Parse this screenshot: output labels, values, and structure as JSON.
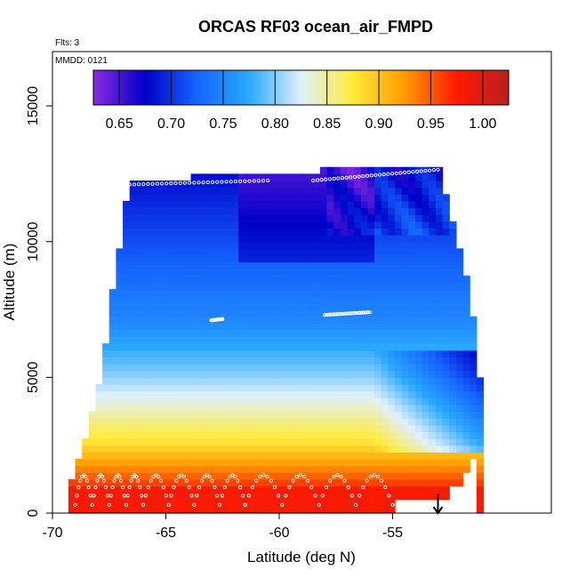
{
  "chart_data": {
    "type": "heatmap",
    "title": "ORCAS RF03 ocean_air_FMPD",
    "notes": {
      "flights": "Flts: 3",
      "date": "MMDD: 0121"
    },
    "xlabel": "Latitude (deg N)",
    "ylabel": "Altitude (m)",
    "xlim": [
      -70,
      -48
    ],
    "ylim": [
      0,
      17000
    ],
    "x_ticks": [
      -70,
      -65,
      -60,
      -55
    ],
    "y_ticks": [
      0,
      5000,
      10000,
      15000
    ],
    "colorbar": {
      "min": 0.625,
      "max": 1.025,
      "ticks": [
        0.65,
        0.7,
        0.75,
        0.8,
        0.85,
        0.9,
        0.95,
        1.0
      ],
      "tick_labels": [
        "0.65",
        "0.70",
        "0.75",
        "0.80",
        "0.85",
        "0.90",
        "0.95",
        "1.00"
      ],
      "colors": [
        "#8a2be2",
        "#0000c8",
        "#1565ff",
        "#2aa8ff",
        "#dff0ff",
        "#ffeb3b",
        "#ff9a00",
        "#ff1a00",
        "#b82020"
      ],
      "placement": "top"
    },
    "grid_bounds": {
      "lat_min": -69.3,
      "lat_max": -51.2,
      "alt_min": 0,
      "alt_max": 12700
    },
    "profile_boundary": [
      [
        -69.3,
        0,
        500
      ],
      [
        -69.0,
        0,
        1500
      ],
      [
        -68.8,
        0,
        2000
      ],
      [
        -68.4,
        0,
        3000
      ],
      [
        -68.0,
        0,
        4500
      ],
      [
        -67.6,
        0,
        6500
      ],
      [
        -67.3,
        0,
        8500
      ],
      [
        -67.0,
        0,
        10000
      ],
      [
        -66.8,
        0,
        11000
      ],
      [
        -66.6,
        0,
        12100
      ],
      [
        -63.0,
        0,
        12300
      ],
      [
        -60.0,
        0,
        12450
      ],
      [
        -55.0,
        500,
        12600
      ],
      [
        -54.5,
        500,
        12600
      ],
      [
        -54.0,
        500,
        12650
      ],
      [
        -53.5,
        500,
        12700
      ],
      [
        -53.0,
        500,
        12700
      ],
      [
        -52.5,
        1000,
        11200
      ],
      [
        -52.0,
        1500,
        9500
      ],
      [
        -51.5,
        2000,
        7500
      ],
      [
        -51.2,
        2500,
        5000
      ]
    ],
    "surface_profiles": [
      {
        "lat_start": -69.0,
        "lat_end": -66.0
      },
      {
        "lat_start": -66.0,
        "lat_end": -61.5
      },
      {
        "lat_start": -61.5,
        "lat_end": -55.0
      }
    ],
    "flight_track_segments": [
      [
        [
          -66.6,
          12100
        ],
        [
          -60.5,
          12250
        ]
      ],
      [
        [
          -58.5,
          12250
        ],
        [
          -53.0,
          12650
        ]
      ],
      [
        [
          -58.0,
          7300
        ],
        [
          -56.0,
          7400
        ]
      ],
      [
        [
          -63.0,
          7100
        ],
        [
          -62.5,
          7150
        ]
      ]
    ],
    "arrow": {
      "lat": -53.0,
      "alt_from": 700,
      "alt_to": 0
    }
  }
}
